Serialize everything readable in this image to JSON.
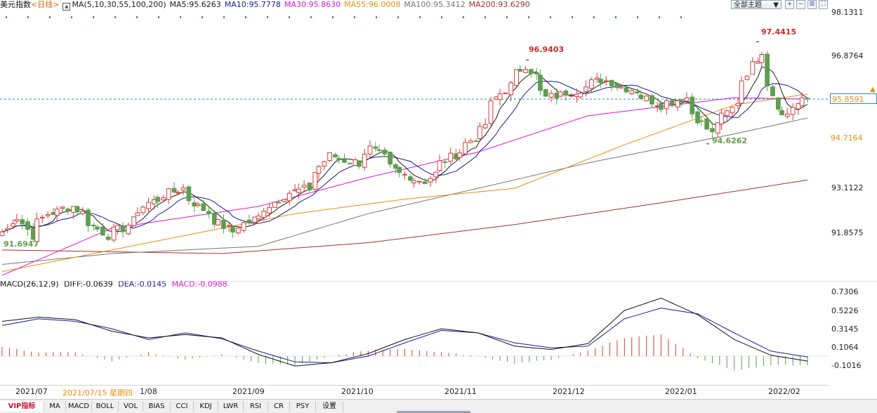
{
  "header": {
    "instrument": "美元指数",
    "period": "<日线>",
    "ma_params": "MA(5,10,30,55,100,200)",
    "ma5": "MA5:95.6263",
    "ma10": "MA10:95.7778",
    "ma30": "MA30:95.8630",
    "ma55": "MA55:96.0008",
    "ma100": "MA100:95.3412",
    "ma200": "MA200:93.6290",
    "theme_select": "全部主题"
  },
  "colors": {
    "up": "#d43c3c",
    "down": "#5e9e4e",
    "ma5": "#1a1a1a",
    "ma10": "#1a1a9a",
    "ma30": "#d916d9",
    "ma55": "#e8900c",
    "ma100": "#777777",
    "ma200": "#a83232",
    "macd_hist_pos": "#d43c3c",
    "macd_hist_neg": "#5e9e4e",
    "dash": "#2a8ac4"
  },
  "icons": [
    "candle-toggle-icon",
    "zoom-in-icon",
    "zoom-out-icon",
    "add-indicator-icon",
    "fit-icon"
  ],
  "price_axis": {
    "ticks": [
      "98.1311",
      "96.8764",
      "95.8591",
      "94.7164",
      "93.1122",
      "91.8575"
    ],
    "current_price": "95.8591",
    "ma55_box": "94.7164"
  },
  "annotations": {
    "high_label": "97.4415",
    "peak_label": "96.9403",
    "trough_label": "94.6262",
    "low_label": "91.6947"
  },
  "macd": {
    "title": "MACD(26,12,9)",
    "diff": "DIFF:-0.0639",
    "dea": "DEA:-0.0145",
    "macd": "MACD:-0.0988",
    "ticks": [
      "0.7306",
      "0.5226",
      "0.3145",
      "0.1064",
      "-0.1016"
    ]
  },
  "x_axis": {
    "labels": [
      "2021/07",
      "1/08",
      "2021/09",
      "2021/10",
      "2021/11",
      "2021/12",
      "2022/01",
      "2022/02"
    ],
    "cursor_date": "2021/07/15 星期四"
  },
  "tabs": [
    "VIP指标",
    "MA",
    "MACD",
    "BOLL",
    "VOL",
    "BIAS",
    "CCI",
    "KDJ",
    "LWR",
    "RSI",
    "CR",
    "PSY",
    "设置"
  ],
  "chart_data": [
    {
      "type": "candlestick",
      "title": "美元指数",
      "ylim": [
        91.0,
        98.4
      ],
      "anchors": [
        {
          "date": "2021/07/01",
          "close": 92.2
        },
        {
          "date": "2021/07/06",
          "close": 92.6
        },
        {
          "date": "2021/07/09",
          "close": 92.1
        },
        {
          "date": "2021/07/14",
          "close": 92.7
        },
        {
          "date": "2021/07/21",
          "close": 92.9
        },
        {
          "date": "2021/07/30",
          "close": 92.1
        },
        {
          "date": "2021/08/04",
          "close": 92.3
        },
        {
          "date": "2021/08/11",
          "close": 93.0
        },
        {
          "date": "2021/08/20",
          "close": 93.4
        },
        {
          "date": "2021/08/25",
          "close": 92.9
        },
        {
          "date": "2021/09/03",
          "close": 92.2
        },
        {
          "date": "2021/09/10",
          "close": 92.6
        },
        {
          "date": "2021/09/17",
          "close": 93.2
        },
        {
          "date": "2021/09/24",
          "close": 93.4
        },
        {
          "date": "2021/09/30",
          "close": 94.3
        },
        {
          "date": "2021/10/08",
          "close": 94.1
        },
        {
          "date": "2021/10/12",
          "close": 94.5
        },
        {
          "date": "2021/10/20",
          "close": 93.8
        },
        {
          "date": "2021/10/27",
          "close": 93.6
        },
        {
          "date": "2021/11/01",
          "close": 94.1
        },
        {
          "date": "2021/11/10",
          "close": 94.8
        },
        {
          "date": "2021/11/16",
          "close": 95.9
        },
        {
          "date": "2021/11/24",
          "close": 96.8
        },
        {
          "date": "2021/11/30",
          "close": 95.9
        },
        {
          "date": "2021/12/08",
          "close": 96.1
        },
        {
          "date": "2021/12/15",
          "close": 96.4
        },
        {
          "date": "2021/12/24",
          "close": 96.1
        },
        {
          "date": "2021/12/31",
          "close": 95.7
        },
        {
          "date": "2022/01/07",
          "close": 95.9
        },
        {
          "date": "2022/01/14",
          "close": 94.9
        },
        {
          "date": "2022/01/20",
          "close": 95.6
        },
        {
          "date": "2022/01/28",
          "close": 97.2
        },
        {
          "date": "2022/02/03",
          "close": 95.4
        },
        {
          "date": "2022/02/10",
          "close": 95.86
        }
      ],
      "extremes": {
        "high": 97.4415,
        "peak": 96.9403,
        "trough": 94.6262,
        "low": 91.6947
      },
      "moving_averages": {
        "ma30": [
          [
            0,
            91.0
          ],
          [
            60,
            92.3
          ],
          [
            140,
            92.9
          ],
          [
            200,
            93.7
          ],
          [
            260,
            94.4
          ],
          [
            320,
            95.4
          ],
          [
            400,
            95.9
          ],
          [
            440,
            95.86
          ]
        ],
        "ma55": [
          [
            0,
            91.1
          ],
          [
            80,
            91.9
          ],
          [
            160,
            92.7
          ],
          [
            220,
            93.1
          ],
          [
            280,
            93.4
          ],
          [
            340,
            94.6
          ],
          [
            400,
            95.7
          ],
          [
            440,
            96.0
          ]
        ],
        "ma100": [
          [
            0,
            91.3
          ],
          [
            60,
            91.6
          ],
          [
            140,
            91.8
          ],
          [
            200,
            92.7
          ],
          [
            260,
            93.4
          ],
          [
            320,
            94.1
          ],
          [
            400,
            94.9
          ],
          [
            440,
            95.34
          ]
        ],
        "ma200": [
          [
            0,
            91.7
          ],
          [
            120,
            91.6
          ],
          [
            200,
            91.9
          ],
          [
            280,
            92.4
          ],
          [
            360,
            93.0
          ],
          [
            440,
            93.63
          ]
        ]
      }
    },
    {
      "type": "macd",
      "title": "MACD(26,12,9)",
      "ylim": [
        -0.28,
        0.78
      ],
      "diff": [
        [
          0,
          0.42
        ],
        [
          20,
          0.47
        ],
        [
          40,
          0.44
        ],
        [
          60,
          0.3
        ],
        [
          80,
          0.22
        ],
        [
          100,
          0.26
        ],
        [
          120,
          0.22
        ],
        [
          140,
          0.02
        ],
        [
          160,
          -0.12
        ],
        [
          180,
          -0.08
        ],
        [
          200,
          0.03
        ],
        [
          220,
          0.2
        ],
        [
          240,
          0.33
        ],
        [
          260,
          0.28
        ],
        [
          280,
          0.12
        ],
        [
          300,
          0.08
        ],
        [
          320,
          0.15
        ],
        [
          340,
          0.55
        ],
        [
          360,
          0.7
        ],
        [
          380,
          0.5
        ],
        [
          400,
          0.2
        ],
        [
          420,
          0.01
        ],
        [
          440,
          -0.06
        ]
      ],
      "dea": [
        [
          0,
          0.37
        ],
        [
          20,
          0.45
        ],
        [
          40,
          0.42
        ],
        [
          60,
          0.33
        ],
        [
          80,
          0.2
        ],
        [
          100,
          0.28
        ],
        [
          120,
          0.21
        ],
        [
          140,
          0.06
        ],
        [
          160,
          -0.07
        ],
        [
          180,
          -0.08
        ],
        [
          200,
          0.0
        ],
        [
          220,
          0.16
        ],
        [
          240,
          0.31
        ],
        [
          260,
          0.28
        ],
        [
          280,
          0.16
        ],
        [
          300,
          0.1
        ],
        [
          320,
          0.12
        ],
        [
          340,
          0.45
        ],
        [
          360,
          0.58
        ],
        [
          380,
          0.51
        ],
        [
          400,
          0.28
        ],
        [
          420,
          0.06
        ],
        [
          440,
          -0.01
        ]
      ]
    }
  ]
}
